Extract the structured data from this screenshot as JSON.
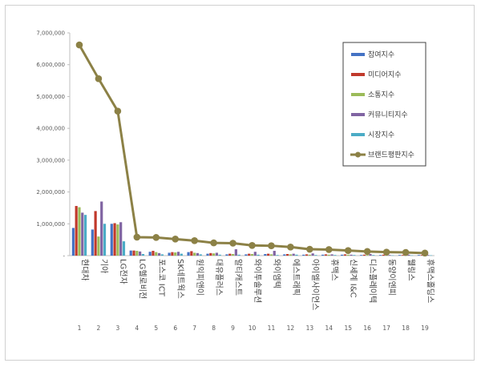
{
  "chart_data": {
    "type": "bar",
    "ylim": [
      0,
      7000000
    ],
    "y_ticks": [
      "-",
      "1,000,000",
      "2,000,000",
      "3,000,000",
      "4,000,000",
      "5,000,000",
      "6,000,000",
      "7,000,000"
    ],
    "grid": false,
    "legend_position": "top-right",
    "ranks": [
      "1",
      "2",
      "3",
      "4",
      "5",
      "6",
      "7",
      "8",
      "9",
      "10",
      "11",
      "12",
      "13",
      "14",
      "15",
      "16",
      "17",
      "18",
      "19"
    ],
    "categories": [
      "현대차",
      "기아",
      "LG전자",
      "LG헬로비전",
      "포스코 ICT",
      "SK네트웍스",
      "원익피앤이",
      "대유플러스",
      "알티캐스트",
      "와이투솔루션",
      "와이엠텍",
      "에스트래픽",
      "아이엘사이언스",
      "휴맥스",
      "신세계 I&C",
      "디스플레이텍",
      "동양이엔피",
      "웰링스",
      "휴맥스홀딩스"
    ],
    "series": [
      {
        "name": "참여지수",
        "color": "#4472c4",
        "values": [
          870000,
          820000,
          1000000,
          160000,
          120000,
          90000,
          110000,
          60000,
          40000,
          40000,
          50000,
          40000,
          30000,
          30000,
          30000,
          20000,
          20000,
          20000,
          20000
        ]
      },
      {
        "name": "미디어지수",
        "color": "#c0392b",
        "values": [
          1560000,
          1400000,
          1020000,
          160000,
          150000,
          110000,
          140000,
          80000,
          60000,
          60000,
          60000,
          50000,
          40000,
          40000,
          40000,
          30000,
          30000,
          20000,
          20000
        ]
      },
      {
        "name": "소통지수",
        "color": "#9bbb59",
        "values": [
          1520000,
          600000,
          980000,
          150000,
          110000,
          100000,
          90000,
          70000,
          50000,
          50000,
          40000,
          40000,
          30000,
          30000,
          30000,
          20000,
          20000,
          20000,
          20000
        ]
      },
      {
        "name": "커뮤니티지수",
        "color": "#8064a2",
        "values": [
          1350000,
          1700000,
          1050000,
          130000,
          80000,
          120000,
          80000,
          90000,
          200000,
          120000,
          150000,
          60000,
          70000,
          40000,
          30000,
          50000,
          20000,
          30000,
          20000
        ]
      },
      {
        "name": "시장지수",
        "color": "#4bacc6",
        "values": [
          1280000,
          1000000,
          450000,
          50000,
          40000,
          60000,
          40000,
          30000,
          30000,
          30000,
          20000,
          30000,
          20000,
          20000,
          20000,
          20000,
          10000,
          10000,
          10000
        ]
      }
    ],
    "line_series": {
      "name": "브랜드평판지수",
      "color": "#8c8146",
      "values": [
        6620000,
        5560000,
        4540000,
        580000,
        570000,
        520000,
        470000,
        400000,
        390000,
        320000,
        310000,
        270000,
        200000,
        190000,
        160000,
        130000,
        110000,
        100000,
        80000
      ]
    }
  }
}
